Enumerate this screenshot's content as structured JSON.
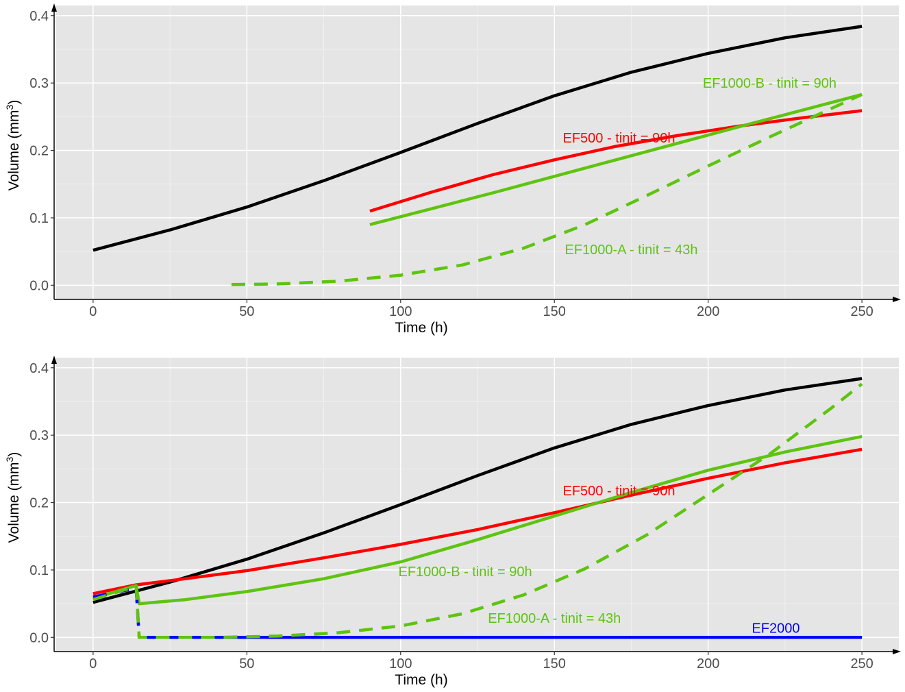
{
  "chart_data": [
    {
      "type": "line",
      "xlabel": "Time (h)",
      "ylabel_main": "Volume (mm",
      "ylabel_sup": "3",
      "ylabel_end": ")",
      "xlim": [
        -12,
        262
      ],
      "ylim": [
        -0.02,
        0.415
      ],
      "x_ticks": [
        0,
        50,
        100,
        150,
        200,
        250
      ],
      "y_ticks": [
        0.0,
        0.1,
        0.2,
        0.3,
        0.4
      ],
      "x_tick_labels": [
        "0",
        "50",
        "100",
        "150",
        "200",
        "250"
      ],
      "y_tick_labels": [
        "0.0",
        "0.1",
        "0.2",
        "0.3",
        "0.4"
      ],
      "grid": true,
      "series": [
        {
          "color": "#000000",
          "dash": "solid",
          "x": [
            0,
            25,
            50,
            75,
            100,
            125,
            150,
            175,
            200,
            225,
            250
          ],
          "y": [
            0.052,
            0.082,
            0.116,
            0.155,
            0.197,
            0.24,
            0.281,
            0.316,
            0.344,
            0.367,
            0.384
          ]
        },
        {
          "color": "#ff0000",
          "dash": "solid",
          "x": [
            90,
            110,
            130,
            150,
            170,
            190,
            210,
            230,
            250
          ],
          "y": [
            0.11,
            0.138,
            0.164,
            0.186,
            0.206,
            0.222,
            0.236,
            0.248,
            0.259
          ]
        },
        {
          "color": "#5ec40f",
          "dash": "solid",
          "x": [
            90,
            130,
            170,
            210,
            250
          ],
          "y": [
            0.09,
            0.137,
            0.186,
            0.235,
            0.283
          ]
        },
        {
          "color": "#5ec40f",
          "dash": "dashed",
          "x": [
            45,
            60,
            80,
            100,
            120,
            140,
            160,
            180,
            200,
            220,
            240,
            250
          ],
          "y": [
            0.001,
            0.002,
            0.006,
            0.015,
            0.03,
            0.055,
            0.09,
            0.133,
            0.177,
            0.22,
            0.262,
            0.283
          ]
        }
      ],
      "annotations": [
        {
          "text": "EF1000-B - tinit = 90h",
          "x": 220,
          "y": 0.3,
          "color": "#5ec40f"
        },
        {
          "text": "EF500 - tinit = 90h",
          "x": 171,
          "y": 0.219,
          "color": "#ff0000"
        },
        {
          "text": "EF1000-A - tinit = 43h",
          "x": 175,
          "y": 0.053,
          "color": "#5ec40f"
        }
      ]
    },
    {
      "type": "line",
      "xlabel": "Time (h)",
      "ylabel_main": "Volume (mm",
      "ylabel_sup": "3",
      "ylabel_end": ")",
      "xlim": [
        -12,
        262
      ],
      "ylim": [
        -0.02,
        0.415
      ],
      "x_ticks": [
        0,
        50,
        100,
        150,
        200,
        250
      ],
      "y_ticks": [
        0.0,
        0.1,
        0.2,
        0.3,
        0.4
      ],
      "x_tick_labels": [
        "0",
        "50",
        "100",
        "150",
        "200",
        "250"
      ],
      "y_tick_labels": [
        "0.0",
        "0.1",
        "0.2",
        "0.3",
        "0.4"
      ],
      "grid": true,
      "series": [
        {
          "color": "#000000",
          "dash": "solid",
          "x": [
            0,
            25,
            50,
            75,
            100,
            125,
            150,
            175,
            200,
            225,
            250
          ],
          "y": [
            0.052,
            0.082,
            0.116,
            0.155,
            0.197,
            0.24,
            0.281,
            0.316,
            0.344,
            0.367,
            0.384
          ]
        },
        {
          "color": "#ff0000",
          "dash": "solid",
          "x": [
            0,
            14,
            30,
            50,
            75,
            100,
            125,
            150,
            175,
            200,
            225,
            250
          ],
          "y": [
            0.065,
            0.078,
            0.087,
            0.099,
            0.118,
            0.138,
            0.16,
            0.185,
            0.211,
            0.236,
            0.259,
            0.279
          ]
        },
        {
          "color": "#5ec40f",
          "dash": "solid",
          "x": [
            0,
            14,
            15,
            30,
            50,
            75,
            100,
            125,
            150,
            175,
            200,
            225,
            250
          ],
          "y": [
            0.058,
            0.077,
            0.05,
            0.056,
            0.068,
            0.087,
            0.112,
            0.145,
            0.18,
            0.215,
            0.248,
            0.275,
            0.298
          ]
        },
        {
          "color": "#0000ff",
          "dash": "dashed",
          "x": [
            0,
            14,
            15,
            250
          ],
          "y": [
            0.06,
            0.073,
            0.0,
            0.0
          ]
        },
        {
          "color": "#0000ff",
          "dash": "solid",
          "x": [
            15,
            250
          ],
          "y": [
            0.0,
            0.0
          ]
        },
        {
          "color": "#5ec40f",
          "dash": "dashed",
          "x": [
            0,
            14,
            15,
            40,
            60,
            80,
            100,
            120,
            140,
            160,
            180,
            200,
            220,
            240,
            250
          ],
          "y": [
            0.056,
            0.076,
            0.0,
            0.0,
            0.002,
            0.007,
            0.017,
            0.035,
            0.063,
            0.102,
            0.152,
            0.212,
            0.272,
            0.34,
            0.376
          ]
        }
      ],
      "annotations": [
        {
          "text": "EF500 - tinit = 90h",
          "x": 171,
          "y": 0.218,
          "color": "#ff0000"
        },
        {
          "text": "EF1000-B - tinit = 90h",
          "x": 121,
          "y": 0.098,
          "color": "#5ec40f"
        },
        {
          "text": "EF1000-A - tinit = 43h",
          "x": 150,
          "y": 0.029,
          "color": "#5ec40f"
        },
        {
          "text": "EF2000",
          "x": 222,
          "y": 0.014,
          "color": "#0000ff"
        }
      ]
    }
  ]
}
